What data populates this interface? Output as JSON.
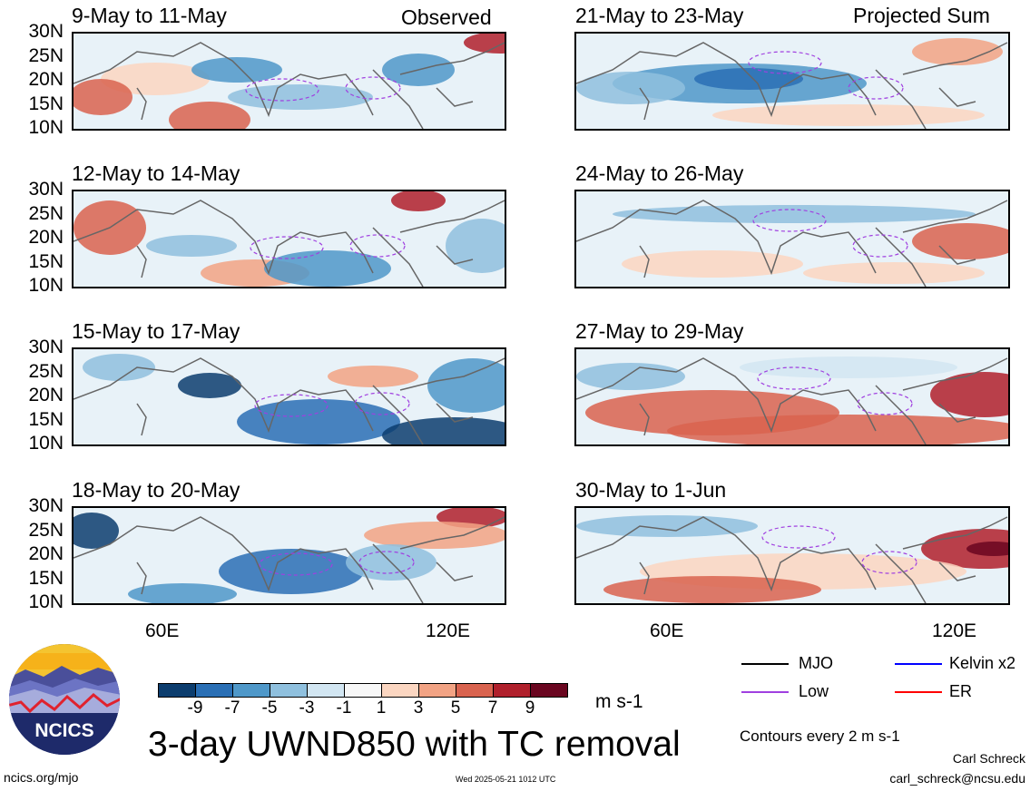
{
  "header": {
    "observed_label": "Observed",
    "projected_label": "Projected Sum"
  },
  "panels": {
    "left": [
      {
        "title": "9-May to 11-May"
      },
      {
        "title": "12-May to 14-May"
      },
      {
        "title": "15-May to 17-May"
      },
      {
        "title": "18-May to 20-May"
      }
    ],
    "right": [
      {
        "title": "21-May to 23-May"
      },
      {
        "title": "24-May to 26-May"
      },
      {
        "title": "27-May to 29-May"
      },
      {
        "title": "30-May to 1-Jun"
      }
    ]
  },
  "axes": {
    "lat_labels": [
      "30N",
      "25N",
      "20N",
      "15N",
      "10N"
    ],
    "lon_labels": [
      "60E",
      "120E"
    ]
  },
  "colorbar": {
    "colors": [
      "#0c3d6e",
      "#2a6fb5",
      "#4f98c9",
      "#8fc0de",
      "#d2e6f2",
      "#f7f7f7",
      "#fbd6c1",
      "#f2a384",
      "#d9634f",
      "#b0202c",
      "#6a0620"
    ],
    "tick_labels": [
      "-9",
      "-7",
      "-5",
      "-3",
      "-1",
      "1",
      "3",
      "5",
      "7",
      "9"
    ],
    "units": "m s-1"
  },
  "main_title": "3-day UWND850 with TC removal",
  "legend": {
    "items": [
      {
        "label": "MJO",
        "color": "#000000"
      },
      {
        "label": "Kelvin x2",
        "color": "#0000ff"
      },
      {
        "label": "Low",
        "color": "#a040e0"
      },
      {
        "label": "ER",
        "color": "#ff0000"
      }
    ],
    "contours_note": "Contours every 2 m s-1"
  },
  "footer": {
    "website": "ncics.org/mjo",
    "timestamp": "Wed 2025-05-21 1012 UTC",
    "author": "Carl Schreck",
    "email": "carl_schreck@ncsu.edu"
  },
  "logo": {
    "text": "NCICS"
  }
}
